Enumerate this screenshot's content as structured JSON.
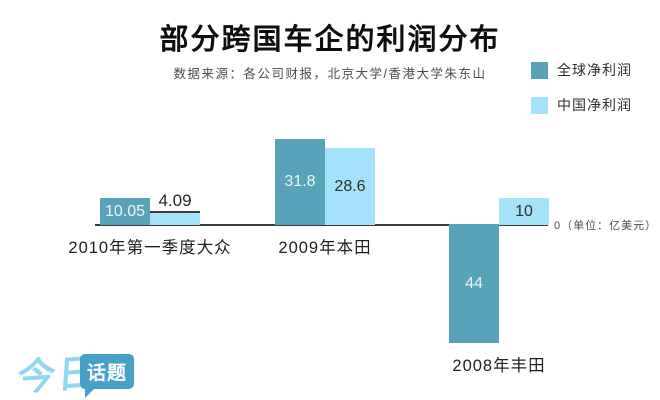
{
  "header": {
    "title": "部分跨国车企的利润分布",
    "subtitle": "数据来源：各公司财报，北京大学/香港大学朱东山"
  },
  "legend": {
    "items": [
      {
        "label": "全球净利润",
        "color": "#58a3b9"
      },
      {
        "label": "中国净利润",
        "color": "#a3e2f8"
      }
    ]
  },
  "axis": {
    "zero_unit_label": "0（单位：亿美元）"
  },
  "chart_data": {
    "type": "bar",
    "title": "部分跨国车企的利润分布",
    "unit": "亿美元",
    "categories": [
      "2010年第一季度大众",
      "2009年本田",
      "2008年丰田"
    ],
    "series": [
      {
        "name": "全球净利润",
        "color": "#58a3b9",
        "values": [
          10.05,
          31.8,
          -44
        ],
        "labels": [
          "10.05",
          "31.8",
          "44"
        ]
      },
      {
        "name": "中国净利润",
        "color": "#a3e2f8",
        "values": [
          4.09,
          28.6,
          10
        ],
        "labels": [
          "4.09",
          "28.6",
          "10"
        ]
      }
    ],
    "baseline": 0,
    "ylim": [
      -48,
      34
    ],
    "grid": false,
    "legend_position": "top-right"
  },
  "logo": {
    "brand": "今日",
    "bubble": "话题"
  },
  "colors": {
    "global_bar": "#58a3b9",
    "china_bar": "#a3e2f8",
    "axis_line": "#3c3c3c",
    "logo_light_blue": "#92d6f0",
    "logo_bubble_blue": "#45a2c6"
  }
}
